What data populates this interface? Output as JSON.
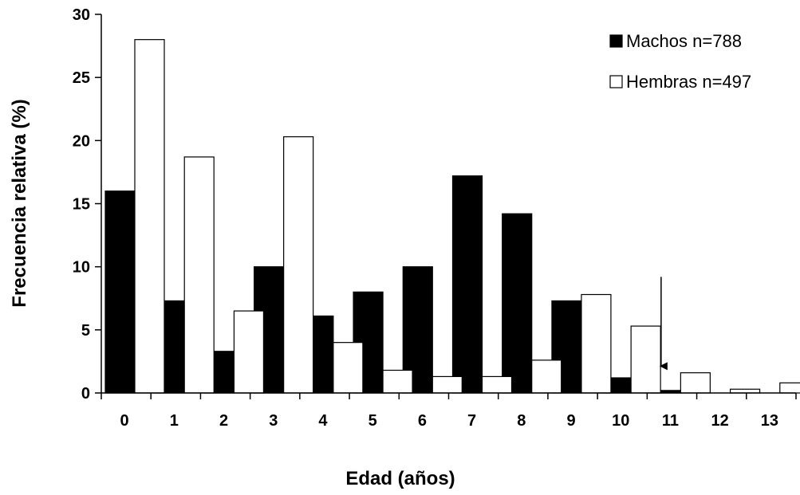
{
  "chart_data": {
    "type": "bar",
    "title": "",
    "xlabel": "Edad (años)",
    "ylabel": "Frecuencia relativa (%)",
    "categories": [
      "0",
      "1",
      "2",
      "3",
      "4",
      "5",
      "6",
      "7",
      "8",
      "9",
      "10",
      "11",
      "12",
      "13"
    ],
    "series": [
      {
        "name": "Machos n=788",
        "color": "#000000",
        "values": [
          16.0,
          7.3,
          3.3,
          10.0,
          6.1,
          8.0,
          10.0,
          17.2,
          14.2,
          7.3,
          1.2,
          0.2,
          0.0,
          0.0
        ]
      },
      {
        "name": "Hembras n=497",
        "color": "#ffffff",
        "values": [
          28.0,
          18.7,
          6.5,
          20.3,
          4.0,
          1.8,
          1.3,
          1.3,
          2.6,
          7.8,
          5.3,
          1.6,
          0.3,
          0.8
        ]
      }
    ],
    "ylim": [
      0,
      30
    ],
    "yticks": [
      0,
      5,
      10,
      15,
      20,
      25,
      30
    ],
    "grid": false,
    "legend_position": "top-right",
    "annotation": {
      "type": "arrow",
      "category": "11",
      "from_y": 9.2,
      "to_y": 2.0
    }
  }
}
